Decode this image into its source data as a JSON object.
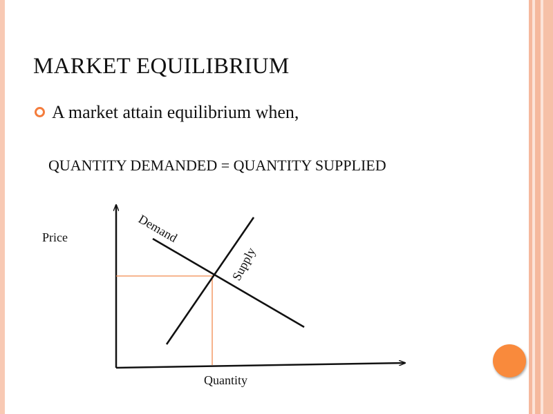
{
  "slide": {
    "title": "MARKET EQUILIBRIUM",
    "bullet": "A market attain equilibrium when,",
    "equation": "QUANTITY DEMANDED = QUANTITY SUPPLIED"
  },
  "diagram": {
    "y_axis_label": "Price",
    "x_axis_label": "Quantity",
    "demand_label": "Demand",
    "supply_label": "Supply"
  },
  "colors": {
    "accent": "#f47c3c",
    "guide_line": "#f28a4e",
    "circle": "#f98a3c"
  }
}
